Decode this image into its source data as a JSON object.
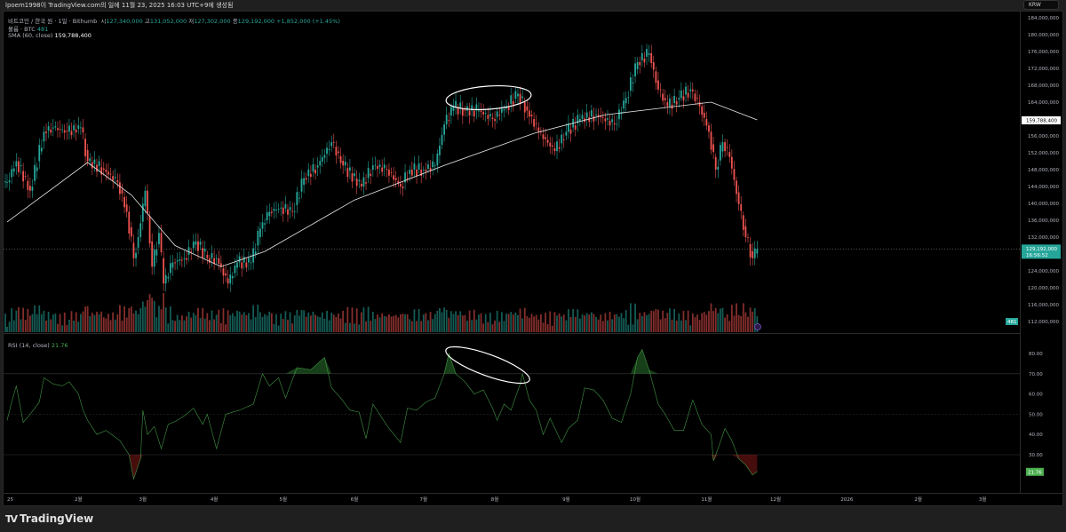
{
  "header": {
    "caption": "lpoem1998이 TradingView.com의 일에 11월 23, 2025 16:03 UTC+9에 생성됨"
  },
  "legend": {
    "symbol": "비트코인 / 한국 원 · 1일 · Bithumb",
    "o_label": "시",
    "o": "127,340,000",
    "h_label": "고",
    "h": "131,052,000",
    "l_label": "저",
    "l": "127,302,000",
    "c_label": "종",
    "c": "129,192,000",
    "change": "+1,852,000 (+1.45%)",
    "volume_label": "볼륨 · BTC",
    "volume": "481",
    "sma_label": "SMA (60, close)",
    "sma": "159,788,400",
    "rsi_label": "RSI (14, close)",
    "rsi": "21.76"
  },
  "currency_button": "KRW",
  "footer": {
    "brand": "TradingView"
  },
  "colors": {
    "up": "#26a69a",
    "down": "#ef5350",
    "sma": "#e8e8e8",
    "rsi": "#4caf50",
    "background": "#000000"
  },
  "chart_data": [
    {
      "type": "candlestick",
      "ylim": [
        108000000,
        185000000
      ],
      "yticks": [
        "184,000,000",
        "180,000,000",
        "176,000,000",
        "172,000,000",
        "168,000,000",
        "164,000,000",
        "156,000,000",
        "152,000,000",
        "148,000,000",
        "144,000,000",
        "140,000,000",
        "136,000,000",
        "132,000,000",
        "124,000,000",
        "120,000,000",
        "116,000,000",
        "112,000,000"
      ],
      "ytick_values": [
        184,
        180,
        176,
        172,
        168,
        164,
        156,
        152,
        148,
        144,
        140,
        136,
        132,
        124,
        120,
        116,
        112
      ],
      "unit_millions_krw": true,
      "xticks": [
        "25",
        "2월",
        "3월",
        "4월",
        "5월",
        "6월",
        "7월",
        "8월",
        "9월",
        "10월",
        "11월",
        "12월",
        "2026",
        "2월",
        "3월"
      ],
      "xtick_dates": [
        "2025-01-01",
        "2025-02-01",
        "2025-03-01",
        "2025-04-01",
        "2025-05-01",
        "2025-06-01",
        "2025-07-01",
        "2025-08-01",
        "2025-09-01",
        "2025-10-01",
        "2025-11-01",
        "2025-12-01",
        "2026-01-01",
        "2026-02-01",
        "2026-03-01"
      ],
      "closes": [
        [
          "2025-01-01",
          145
        ],
        [
          "2025-01-05",
          150
        ],
        [
          "2025-01-11",
          143
        ],
        [
          "2025-01-17",
          157
        ],
        [
          "2025-01-21",
          158
        ],
        [
          "2025-01-27",
          157
        ],
        [
          "2025-02-02",
          158
        ],
        [
          "2025-02-05",
          150
        ],
        [
          "2025-02-12",
          148
        ],
        [
          "2025-02-18",
          145
        ],
        [
          "2025-02-22",
          138
        ],
        [
          "2025-02-25",
          127
        ],
        [
          "2025-02-27",
          132
        ],
        [
          "2025-03-02",
          143
        ],
        [
          "2025-03-05",
          125
        ],
        [
          "2025-03-08",
          133
        ],
        [
          "2025-03-10",
          121
        ],
        [
          "2025-03-14",
          126
        ],
        [
          "2025-03-19",
          127
        ],
        [
          "2025-03-24",
          131
        ],
        [
          "2025-03-29",
          127
        ],
        [
          "2025-04-02",
          127
        ],
        [
          "2025-04-07",
          121
        ],
        [
          "2025-04-11",
          126
        ],
        [
          "2025-04-17",
          126
        ],
        [
          "2025-04-21",
          134
        ],
        [
          "2025-04-25",
          138
        ],
        [
          "2025-04-30",
          139
        ],
        [
          "2025-05-05",
          138
        ],
        [
          "2025-05-10",
          146
        ],
        [
          "2025-05-16",
          149
        ],
        [
          "2025-05-22",
          154.5
        ],
        [
          "2025-05-27",
          149
        ],
        [
          "2025-06-04",
          144
        ],
        [
          "2025-06-09",
          149
        ],
        [
          "2025-06-15",
          148
        ],
        [
          "2025-06-21",
          144
        ],
        [
          "2025-06-25",
          148
        ],
        [
          "2025-07-01",
          148
        ],
        [
          "2025-07-06",
          149
        ],
        [
          "2025-07-10",
          158.7
        ],
        [
          "2025-07-14",
          163
        ],
        [
          "2025-07-19",
          162
        ],
        [
          "2025-07-25",
          162
        ],
        [
          "2025-07-31",
          160
        ],
        [
          "2025-08-06",
          163
        ],
        [
          "2025-08-11",
          166
        ],
        [
          "2025-08-15",
          162
        ],
        [
          "2025-08-20",
          157
        ],
        [
          "2025-08-27",
          152.4
        ],
        [
          "2025-09-01",
          157
        ],
        [
          "2025-09-07",
          160
        ],
        [
          "2025-09-14",
          161
        ],
        [
          "2025-09-22",
          158.7
        ],
        [
          "2025-09-27",
          165
        ],
        [
          "2025-10-02",
          173.5
        ],
        [
          "2025-10-07",
          175.6
        ],
        [
          "2025-10-11",
          167
        ],
        [
          "2025-10-15",
          163
        ],
        [
          "2025-10-20",
          165
        ],
        [
          "2025-10-25",
          167
        ],
        [
          "2025-10-29",
          163
        ],
        [
          "2025-11-02",
          157
        ],
        [
          "2025-11-05",
          148
        ],
        [
          "2025-11-08",
          154.5
        ],
        [
          "2025-11-11",
          151
        ],
        [
          "2025-11-15",
          139.8
        ],
        [
          "2025-11-18",
          132
        ],
        [
          "2025-11-21",
          127
        ],
        [
          "2025-11-23",
          129.192
        ]
      ],
      "sma60": [
        [
          "2025-01-01",
          135.6
        ],
        [
          "2025-02-05",
          149.7
        ],
        [
          "2025-02-24",
          142
        ],
        [
          "2025-03-15",
          130
        ],
        [
          "2025-04-04",
          125
        ],
        [
          "2025-04-23",
          128.6
        ],
        [
          "2025-06-01",
          140.8
        ],
        [
          "2025-07-10",
          149
        ],
        [
          "2025-08-18",
          156.6
        ],
        [
          "2025-09-18",
          161
        ],
        [
          "2025-11-03",
          164
        ],
        [
          "2025-11-23",
          159.788
        ]
      ],
      "last_price_label": "129,192,000",
      "countdown": "16:56:52",
      "sma_price_label": "159,788,400",
      "volume_badge": "481"
    },
    {
      "type": "line",
      "name": "RSI (14, close)",
      "ylim": [
        15,
        85
      ],
      "yticks": [
        "80.00",
        "70.00",
        "60.00",
        "50.00",
        "40.00",
        "30.00"
      ],
      "ytick_values": [
        80,
        70,
        60,
        50,
        40,
        30
      ],
      "bands": [
        30,
        70
      ],
      "values": [
        [
          "2025-01-01",
          47
        ],
        [
          "2025-01-03",
          56
        ],
        [
          "2025-01-05",
          64
        ],
        [
          "2025-01-08",
          46
        ],
        [
          "2025-01-11",
          50
        ],
        [
          "2025-01-15",
          56
        ],
        [
          "2025-01-17",
          68
        ],
        [
          "2025-01-21",
          65
        ],
        [
          "2025-01-25",
          64
        ],
        [
          "2025-01-28",
          66
        ],
        [
          "2025-02-01",
          60
        ],
        [
          "2025-02-03",
          52
        ],
        [
          "2025-02-05",
          47
        ],
        [
          "2025-02-09",
          40
        ],
        [
          "2025-02-13",
          42
        ],
        [
          "2025-02-19",
          37
        ],
        [
          "2025-02-23",
          30
        ],
        [
          "2025-02-25",
          18
        ],
        [
          "2025-02-28",
          28
        ],
        [
          "2025-03-01",
          52
        ],
        [
          "2025-03-03",
          40
        ],
        [
          "2025-03-06",
          44
        ],
        [
          "2025-03-09",
          33
        ],
        [
          "2025-03-12",
          45
        ],
        [
          "2025-03-16",
          47
        ],
        [
          "2025-03-20",
          50
        ],
        [
          "2025-03-23",
          53
        ],
        [
          "2025-03-27",
          45
        ],
        [
          "2025-03-29",
          50
        ],
        [
          "2025-04-02",
          33
        ],
        [
          "2025-04-06",
          50
        ],
        [
          "2025-04-12",
          52
        ],
        [
          "2025-04-18",
          55
        ],
        [
          "2025-04-22",
          70
        ],
        [
          "2025-04-25",
          64
        ],
        [
          "2025-04-29",
          68
        ],
        [
          "2025-05-02",
          58
        ],
        [
          "2025-05-07",
          73
        ],
        [
          "2025-05-13",
          72
        ],
        [
          "2025-05-19",
          78
        ],
        [
          "2025-05-22",
          63
        ],
        [
          "2025-05-26",
          58
        ],
        [
          "2025-05-30",
          52
        ],
        [
          "2025-06-03",
          51
        ],
        [
          "2025-06-06",
          38
        ],
        [
          "2025-06-09",
          55
        ],
        [
          "2025-06-13",
          48
        ],
        [
          "2025-06-16",
          43
        ],
        [
          "2025-06-21",
          36
        ],
        [
          "2025-06-24",
          53
        ],
        [
          "2025-06-28",
          52
        ],
        [
          "2025-07-02",
          56
        ],
        [
          "2025-07-06",
          58
        ],
        [
          "2025-07-10",
          70
        ],
        [
          "2025-07-12",
          80
        ],
        [
          "2025-07-15",
          70
        ],
        [
          "2025-07-19",
          66
        ],
        [
          "2025-07-23",
          60
        ],
        [
          "2025-07-27",
          62
        ],
        [
          "2025-07-31",
          53
        ],
        [
          "2025-08-02",
          47
        ],
        [
          "2025-08-05",
          55
        ],
        [
          "2025-08-08",
          52
        ],
        [
          "2025-08-12",
          65
        ],
        [
          "2025-08-13",
          70
        ],
        [
          "2025-08-16",
          57
        ],
        [
          "2025-08-19",
          52
        ],
        [
          "2025-08-22",
          40
        ],
        [
          "2025-08-25",
          48
        ],
        [
          "2025-08-30",
          36
        ],
        [
          "2025-09-02",
          43
        ],
        [
          "2025-09-06",
          47
        ],
        [
          "2025-09-09",
          63
        ],
        [
          "2025-09-13",
          62
        ],
        [
          "2025-09-17",
          57
        ],
        [
          "2025-09-21",
          48
        ],
        [
          "2025-09-25",
          46
        ],
        [
          "2025-09-29",
          60
        ],
        [
          "2025-10-02",
          78
        ],
        [
          "2025-10-04",
          82
        ],
        [
          "2025-10-07",
          72
        ],
        [
          "2025-10-11",
          55
        ],
        [
          "2025-10-14",
          50
        ],
        [
          "2025-10-18",
          42
        ],
        [
          "2025-10-22",
          42
        ],
        [
          "2025-10-26",
          57
        ],
        [
          "2025-10-30",
          45
        ],
        [
          "2025-11-03",
          40
        ],
        [
          "2025-11-04",
          27
        ],
        [
          "2025-11-06",
          33
        ],
        [
          "2025-11-09",
          43
        ],
        [
          "2025-11-12",
          37
        ],
        [
          "2025-11-15",
          28
        ],
        [
          "2025-11-18",
          25
        ],
        [
          "2025-11-21",
          20
        ],
        [
          "2025-11-23",
          21.76
        ]
      ],
      "last_value_label": "21.76"
    }
  ]
}
